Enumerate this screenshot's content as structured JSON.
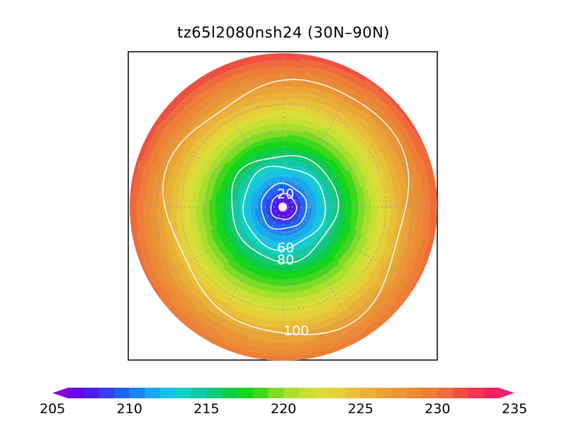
{
  "title": "tz65l2080nsh24 (30N–90N)",
  "field": {
    "domain_lat": [
      30,
      90
    ],
    "pole_value": 205,
    "edge_value": 231,
    "pacific_edge_value": 232.5,
    "atlantic_edge_value": 228.5
  },
  "contours": {
    "color": "#ffffff",
    "levels": [
      {
        "value": 20,
        "label": "20"
      },
      {
        "value": 40,
        "label": ""
      },
      {
        "value": 60,
        "label": "60"
      },
      {
        "value": 80,
        "label": "80"
      },
      {
        "value": 100,
        "label": "100"
      }
    ]
  },
  "colorbar": {
    "min": 205,
    "max": 235,
    "step": 1,
    "ticks": [
      {
        "value": 205,
        "label": "205"
      },
      {
        "value": 210,
        "label": "210"
      },
      {
        "value": 215,
        "label": "215"
      },
      {
        "value": 220,
        "label": "220"
      },
      {
        "value": 225,
        "label": "225"
      },
      {
        "value": 230,
        "label": "230"
      },
      {
        "value": 235,
        "label": "235"
      }
    ],
    "colors": [
      "#8b00d6",
      "#6a00e6",
      "#4a1df0",
      "#3b3cf5",
      "#1f64f5",
      "#1b86f2",
      "#1aa8ee",
      "#18c2e6",
      "#15cfc8",
      "#12c9a5",
      "#10c978",
      "#0fcb48",
      "#14d61c",
      "#3fd81a",
      "#7fdc26",
      "#a9df2e",
      "#c8e034",
      "#dcdc38",
      "#e5d03a",
      "#e8c039",
      "#e9b137",
      "#eaa337",
      "#eb9536",
      "#ec8a36",
      "#ed7e38",
      "#ef6a3c",
      "#f05042",
      "#f1384d",
      "#f0225a",
      "#ec1e7e"
    ]
  }
}
